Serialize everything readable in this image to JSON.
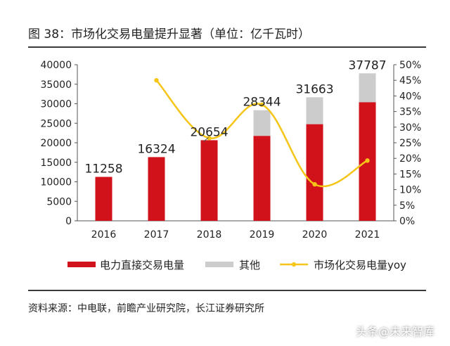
{
  "title": "图 38：市场化交易电量提升显著（单位：亿千瓦时）",
  "source": "资料来源：中电联，前瞻产业研究院，长江证券研究所",
  "watermark": "头条@未来智库",
  "colors": {
    "direct": "#d2121a",
    "other": "#cccccc",
    "yoy": "#f5c518",
    "axis": "#555555"
  },
  "chart_data": {
    "type": "bar",
    "categories": [
      "2016",
      "2017",
      "2018",
      "2019",
      "2020",
      "2021"
    ],
    "series": [
      {
        "name": "电力直接交易电量",
        "type": "stacked-bar",
        "axis": "left",
        "values": [
          11258,
          16324,
          20654,
          21771,
          24760,
          30404
        ]
      },
      {
        "name": "其他",
        "type": "stacked-bar",
        "axis": "left",
        "values": [
          0,
          0,
          0,
          6573,
          6903,
          7383
        ]
      },
      {
        "name": "市场化交易电量yoy",
        "type": "line",
        "axis": "right",
        "values": [
          null,
          0.45,
          0.265,
          0.372,
          0.117,
          0.193
        ]
      }
    ],
    "data_labels": [
      "11258",
      "16324",
      "20654",
      "28344",
      "31663",
      "37787"
    ],
    "left_axis": {
      "min": 0,
      "max": 40000,
      "ticks": [
        "0",
        "5000",
        "10000",
        "15000",
        "20000",
        "25000",
        "30000",
        "35000",
        "40000"
      ]
    },
    "right_axis": {
      "min": 0,
      "max": 0.5,
      "ticks": [
        "0%",
        "5%",
        "10%",
        "15%",
        "20%",
        "25%",
        "30%",
        "35%",
        "40%",
        "45%",
        "50%"
      ]
    },
    "legend_position": "bottom",
    "grid": false
  }
}
